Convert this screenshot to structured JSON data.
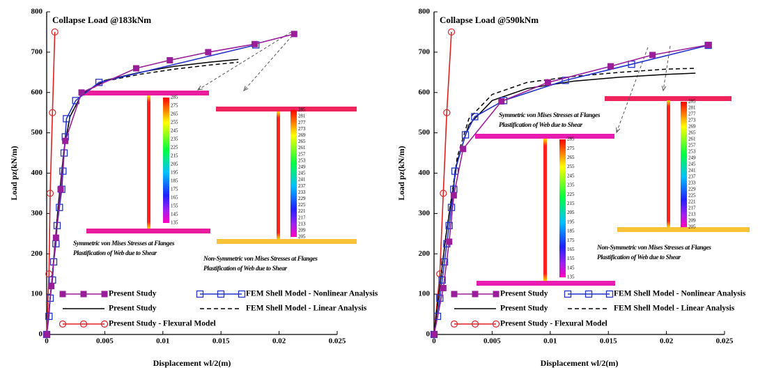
{
  "chart_data": [
    {
      "type": "line",
      "title": "Collapse Load @183kNm",
      "xlabel": "Displacement wl/2(m)",
      "ylabel": "Load pz(kN/m)",
      "xlim": [
        0,
        0.025
      ],
      "xticks": [
        0,
        0.005,
        0.01,
        0.015,
        0.02,
        0.025
      ],
      "ylim": [
        0,
        800
      ],
      "yticks": [
        0,
        100,
        200,
        300,
        400,
        500,
        600,
        700,
        800
      ],
      "grid": false,
      "legend": "lower center",
      "series": [
        {
          "name": "Present Study",
          "color": "#9a1e9a",
          "marker": "square-filled",
          "linestyle": "solid",
          "x": [
            0,
            0.0004,
            0.0008,
            0.0012,
            0.0016,
            0.003,
            0.0077,
            0.0106,
            0.0139,
            0.0179,
            0.0213
          ],
          "values": [
            0,
            120,
            240,
            360,
            480,
            600,
            660,
            680,
            700,
            720,
            745
          ]
        },
        {
          "name": "FEM Shell Model - Nonlinear Analysis",
          "color": "#2233cc",
          "marker": "square-open",
          "linestyle": "solid",
          "x": [
            0,
            0.0002,
            0.0003,
            0.0005,
            0.0006,
            0.0008,
            0.0009,
            0.0011,
            0.0013,
            0.0014,
            0.0015,
            0.0016,
            0.0017,
            0.0025,
            0.0045,
            0.018
          ],
          "values": [
            0,
            45,
            90,
            135,
            180,
            225,
            270,
            315,
            360,
            405,
            450,
            490,
            535,
            580,
            625,
            718
          ]
        },
        {
          "name": "Present Study",
          "color": "#000000",
          "marker": "none",
          "linestyle": "solid",
          "x": [
            0,
            0.0005,
            0.001,
            0.0015,
            0.002,
            0.003,
            0.005,
            0.008,
            0.011,
            0.014,
            0.0165
          ],
          "values": [
            0,
            150,
            320,
            460,
            540,
            595,
            630,
            650,
            665,
            675,
            682
          ]
        },
        {
          "name": "FEM Shell Model - Linear Analysis",
          "color": "#000000",
          "marker": "none",
          "linestyle": "dashed",
          "x": [
            0,
            0.0005,
            0.001,
            0.0015,
            0.002,
            0.003,
            0.005,
            0.008,
            0.011,
            0.014,
            0.0165
          ],
          "values": [
            0,
            150,
            320,
            460,
            540,
            595,
            628,
            645,
            658,
            668,
            675
          ]
        },
        {
          "name": "Present Study - Flexural Model",
          "color": "#e02020",
          "marker": "circle-open",
          "linestyle": "solid",
          "x": [
            0,
            0.0002,
            0.0003,
            0.0005,
            0.0007
          ],
          "values": [
            0,
            150,
            350,
            550,
            750
          ]
        }
      ],
      "insets": [
        {
          "caption": [
            "Symmetric von Mises Stresses at Flanges",
            "Plastification of Web due to Shear"
          ],
          "scale": [
            285,
            275,
            265,
            255,
            245,
            235,
            225,
            215,
            205,
            195,
            185,
            175,
            165,
            155,
            145,
            135
          ]
        },
        {
          "caption": [
            "Non-Symmetric von Mises Stresses at Flanges",
            "Plastification of Web due to Shear"
          ],
          "scale": [
            285,
            281,
            277,
            273,
            269,
            265,
            261,
            257,
            253,
            249,
            245,
            241,
            237,
            233,
            229,
            225,
            221,
            217,
            213,
            209,
            205
          ]
        }
      ]
    },
    {
      "type": "line",
      "title": "Collapse Load @590kNm",
      "xlabel": "Displacement wl/2(m)",
      "ylabel": "Load pz(kN/m)",
      "xlim": [
        0,
        0.025
      ],
      "xticks": [
        0,
        0.005,
        0.01,
        0.015,
        0.02,
        0.025
      ],
      "ylim": [
        0,
        800
      ],
      "yticks": [
        0,
        100,
        200,
        300,
        400,
        500,
        600,
        700,
        800
      ],
      "grid": false,
      "legend": "lower center",
      "series": [
        {
          "name": "Present Study",
          "color": "#9a1e9a",
          "marker": "square-filled",
          "linestyle": "solid",
          "x": [
            0,
            0.0008,
            0.0013,
            0.0017,
            0.0025,
            0.0058,
            0.0098,
            0.0152,
            0.0188,
            0.0236
          ],
          "values": [
            0,
            115,
            230,
            345,
            460,
            578,
            625,
            665,
            693,
            718
          ]
        },
        {
          "name": "FEM Shell Model - Nonlinear Analysis",
          "color": "#2233cc",
          "marker": "square-open",
          "linestyle": "solid",
          "x": [
            0,
            0.0003,
            0.0005,
            0.0007,
            0.0009,
            0.0011,
            0.0013,
            0.0015,
            0.0017,
            0.0018,
            0.0027,
            0.0035,
            0.006,
            0.0113,
            0.017,
            0.0236
          ],
          "values": [
            0,
            45,
            90,
            135,
            180,
            225,
            270,
            315,
            360,
            405,
            495,
            540,
            580,
            630,
            670,
            717
          ]
        },
        {
          "name": "Present Study",
          "color": "#000000",
          "marker": "none",
          "linestyle": "solid",
          "x": [
            0,
            0.001,
            0.002,
            0.003,
            0.005,
            0.008,
            0.012,
            0.016,
            0.02,
            0.0225
          ],
          "values": [
            0,
            240,
            430,
            520,
            580,
            610,
            628,
            638,
            645,
            648
          ]
        },
        {
          "name": "FEM Shell Model - Linear Analysis",
          "color": "#000000",
          "marker": "none",
          "linestyle": "dashed",
          "x": [
            0,
            0.001,
            0.002,
            0.003,
            0.005,
            0.008,
            0.012,
            0.016,
            0.02,
            0.0225
          ],
          "values": [
            0,
            240,
            440,
            535,
            595,
            625,
            640,
            650,
            658,
            660
          ]
        },
        {
          "name": "Present Study - Flexural Model",
          "color": "#e02020",
          "marker": "circle-open",
          "linestyle": "solid",
          "x": [
            0,
            0.0005,
            0.0008,
            0.0011,
            0.0015
          ],
          "values": [
            0,
            150,
            350,
            550,
            750
          ]
        }
      ],
      "insets": [
        {
          "caption": [
            "Non-Symmetric von Mises Stresses at Flanges",
            "Plastification of Web due to Shear"
          ],
          "scale": [
            285,
            281,
            277,
            273,
            269,
            265,
            261,
            257,
            253,
            249,
            245,
            241,
            237,
            233,
            229,
            225,
            221,
            217,
            213,
            209,
            205
          ]
        },
        {
          "caption": [
            "Symmetric von Mises Stresses at Flanges",
            "Plastification of Web due to Shear"
          ],
          "scale": [
            285,
            275,
            265,
            255,
            245,
            235,
            225,
            215,
            205,
            195,
            185,
            175,
            165,
            155,
            145,
            135
          ]
        }
      ]
    }
  ]
}
